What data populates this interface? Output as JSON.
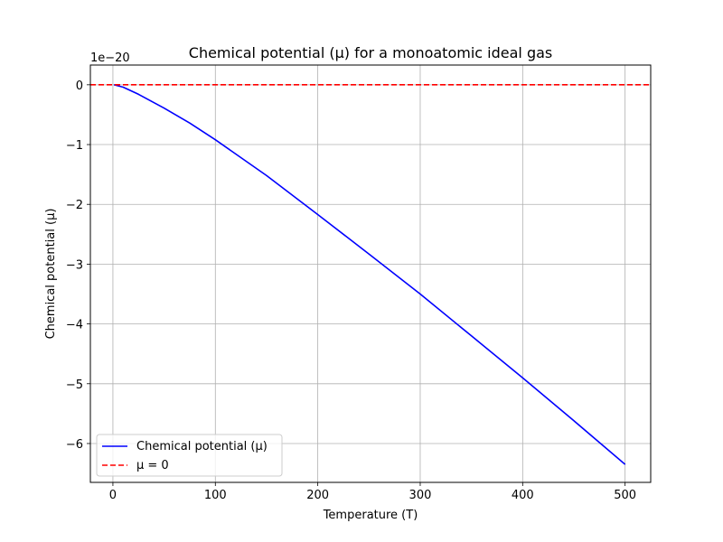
{
  "chart_data": {
    "type": "line",
    "title": "Chemical potential (μ) for a monoatomic ideal gas",
    "xlabel": "Temperature (T)",
    "ylabel": "Chemical potential (μ)",
    "y_offset_label": "1e−20",
    "xlim": [
      -22,
      525
    ],
    "ylim": [
      -6.65,
      0.33
    ],
    "xticks": [
      0,
      100,
      200,
      300,
      400,
      500
    ],
    "xtick_labels": [
      "0",
      "100",
      "200",
      "300",
      "400",
      "500"
    ],
    "yticks": [
      0,
      -1,
      -2,
      -3,
      -4,
      -5,
      -6
    ],
    "ytick_labels": [
      "0",
      "−1",
      "−2",
      "−3",
      "−4",
      "−5",
      "−6"
    ],
    "grid": true,
    "legend_position": "bottom-left",
    "series": [
      {
        "name": "Chemical potential (μ)",
        "color": "#0000ff",
        "style": "solid",
        "x": [
          1,
          10,
          25,
          50,
          75,
          100,
          150,
          200,
          250,
          300,
          350,
          400,
          450,
          500
        ],
        "y": [
          0,
          -0.04,
          -0.16,
          -0.39,
          -0.64,
          -0.92,
          -1.52,
          -2.17,
          -2.83,
          -3.5,
          -4.2,
          -4.9,
          -5.62,
          -6.35
        ]
      },
      {
        "name": "μ = 0",
        "color": "#ff0000",
        "style": "dashed",
        "x": [
          -22,
          525
        ],
        "y": [
          0,
          0
        ]
      }
    ]
  }
}
